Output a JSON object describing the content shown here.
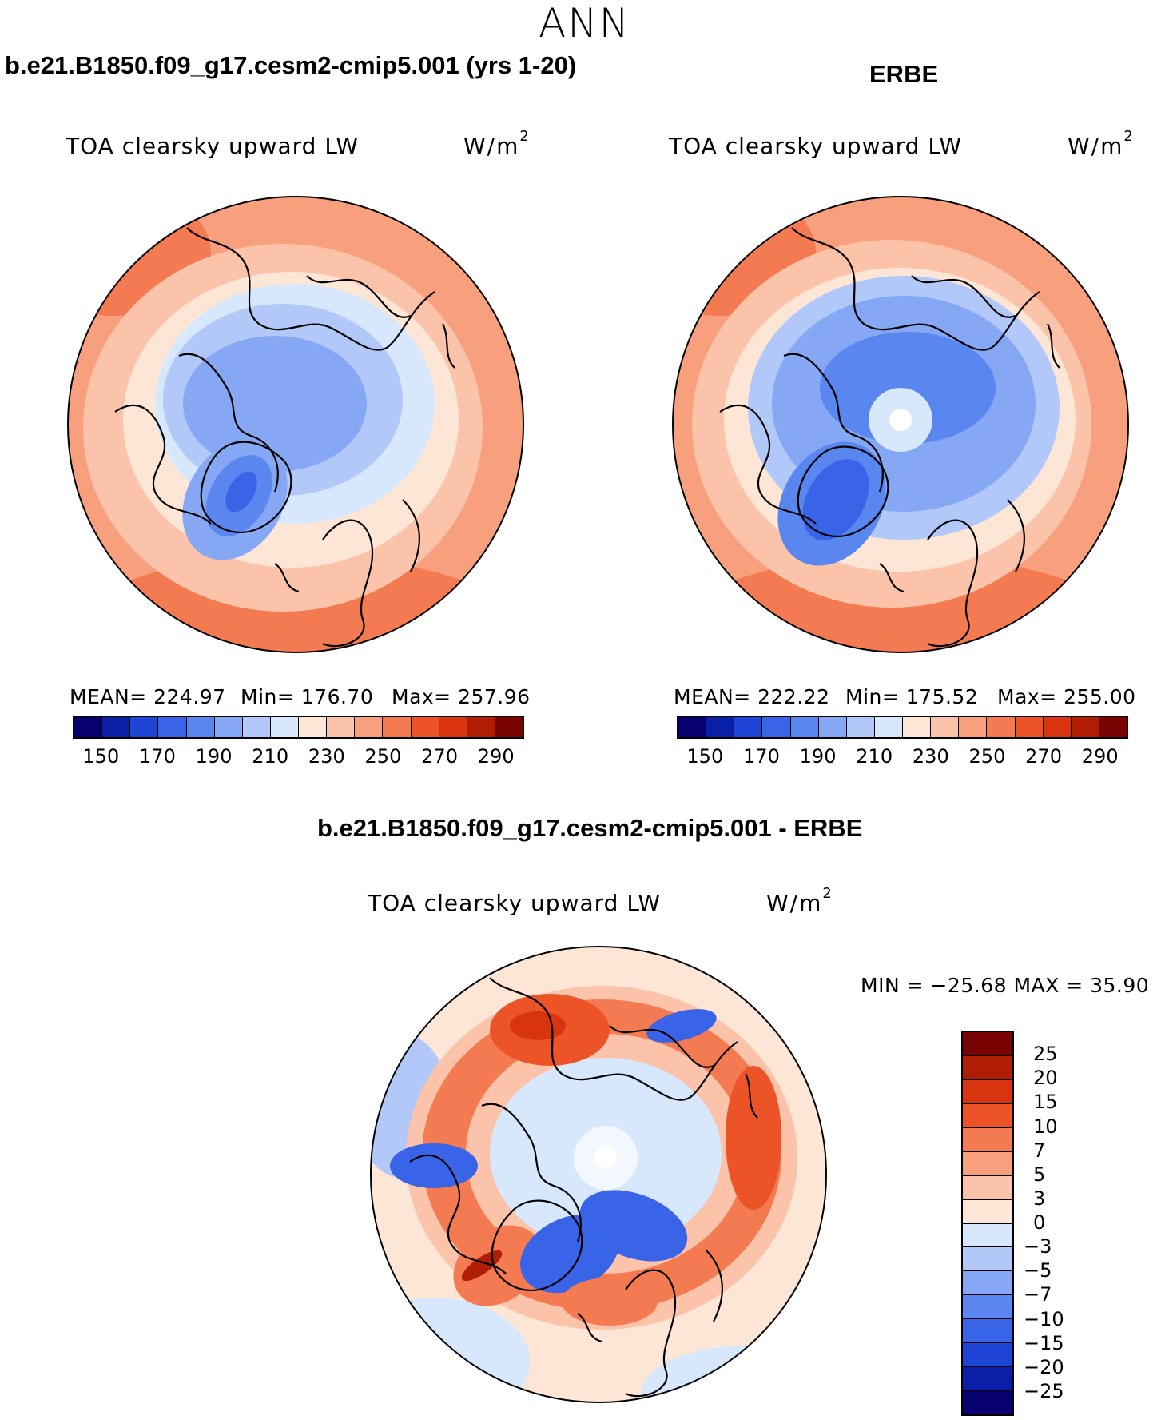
{
  "figure": {
    "season": "ANN"
  },
  "panel_model": {
    "title": "b.e21.B1850.f09_g17.cesm2-cmip5.001 (yrs 1-20)",
    "variable": "TOA clearsky upward LW",
    "unit_base": "W/m",
    "unit_exp": "2",
    "mean_text": "MEAN= 224.97",
    "min_text": "Min= 176.70",
    "max_text": "Max= 257.96"
  },
  "panel_obs": {
    "title": "ERBE",
    "variable": "TOA clearsky upward LW",
    "unit_base": "W/m",
    "unit_exp": "2",
    "mean_text": "MEAN= 222.22",
    "min_text": "Min= 175.52",
    "max_text": "Max= 255.00"
  },
  "panel_diff": {
    "title": "b.e21.B1850.f09_g17.cesm2-cmip5.001 - ERBE",
    "variable": "TOA clearsky upward LW",
    "unit_base": "W/m",
    "unit_exp": "2",
    "minmax_text": "MIN = −25.68 MAX =   35.90"
  },
  "colorbar_abs": {
    "colors": [
      "#08006e",
      "#0a1fa8",
      "#1f45d6",
      "#3a64e8",
      "#5a86f0",
      "#86a8f4",
      "#b1c8f8",
      "#d8e8fc",
      "#fde6d6",
      "#fbc4aa",
      "#f8a07e",
      "#f47a52",
      "#ec5428",
      "#d83410",
      "#b01c04",
      "#7a0404"
    ],
    "tick_labels": [
      "150",
      "170",
      "190",
      "210",
      "230",
      "250",
      "270",
      "290"
    ]
  },
  "colorbar_diff": {
    "colors": [
      "#7a0404",
      "#b01c04",
      "#d83410",
      "#ec5428",
      "#f47a52",
      "#f8a07e",
      "#fbc4aa",
      "#fde6d6",
      "#d8e8fc",
      "#b1c8f8",
      "#86a8f4",
      "#5a86f0",
      "#3a64e8",
      "#1f45d6",
      "#0a1fa8",
      "#08006e"
    ],
    "tick_labels": [
      "25",
      "20",
      "15",
      "10",
      "7",
      "5",
      "3",
      "0",
      "−3",
      "−5",
      "−7",
      "−10",
      "−15",
      "−20",
      "−25"
    ]
  },
  "chart_data": [
    {
      "type": "heatmap",
      "title": "b.e21.B1850.f09_g17.cesm2-cmip5.001 (yrs 1-20)",
      "variable": "TOA clearsky upward LW",
      "units": "W/m2",
      "projection": "north polar stereographic",
      "mean": 224.97,
      "min": 176.7,
      "max": 257.96,
      "levels": [
        150,
        160,
        170,
        180,
        190,
        200,
        210,
        220,
        230,
        240,
        250,
        260,
        270,
        280,
        290
      ]
    },
    {
      "type": "heatmap",
      "title": "ERBE",
      "variable": "TOA clearsky upward LW",
      "units": "W/m2",
      "projection": "north polar stereographic",
      "mean": 222.22,
      "min": 175.52,
      "max": 255.0,
      "levels": [
        150,
        160,
        170,
        180,
        190,
        200,
        210,
        220,
        230,
        240,
        250,
        260,
        270,
        280,
        290
      ]
    },
    {
      "type": "heatmap",
      "title": "b.e21.B1850.f09_g17.cesm2-cmip5.001 - ERBE",
      "variable": "TOA clearsky upward LW",
      "units": "W/m2",
      "projection": "north polar stereographic",
      "min": -25.68,
      "max": 35.9,
      "levels": [
        -25,
        -20,
        -15,
        -10,
        -7,
        -5,
        -3,
        0,
        3,
        5,
        7,
        10,
        15,
        20,
        25
      ]
    }
  ]
}
